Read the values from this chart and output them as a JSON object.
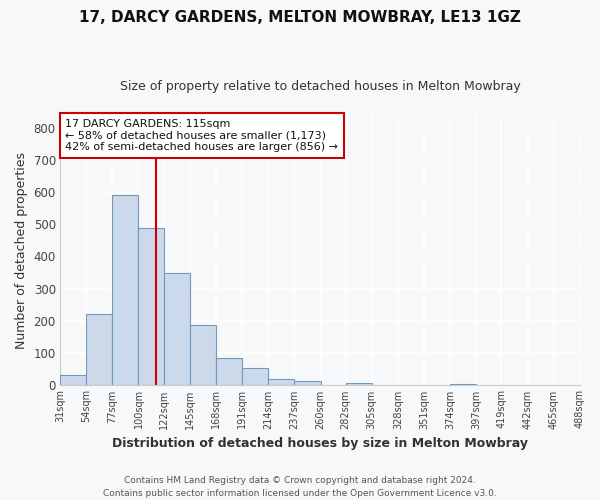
{
  "title": "17, DARCY GARDENS, MELTON MOWBRAY, LE13 1GZ",
  "subtitle": "Size of property relative to detached houses in Melton Mowbray",
  "xlabel": "Distribution of detached houses by size in Melton Mowbray",
  "ylabel": "Number of detached properties",
  "bar_edges": [
    31,
    54,
    77,
    100,
    122,
    145,
    168,
    191,
    214,
    237,
    260,
    282,
    305,
    328,
    351,
    374,
    397,
    419,
    442,
    465,
    488
  ],
  "bar_heights": [
    32,
    220,
    590,
    490,
    350,
    188,
    83,
    52,
    18,
    14,
    0,
    8,
    0,
    0,
    0,
    5,
    0,
    0,
    0,
    0
  ],
  "bar_color": "#ccd9ea",
  "bar_edge_color": "#7198bf",
  "property_line_x": 115,
  "property_line_color": "#cc0000",
  "annotation_title": "17 DARCY GARDENS: 115sqm",
  "annotation_line1": "← 58% of detached houses are smaller (1,173)",
  "annotation_line2": "42% of semi-detached houses are larger (856) →",
  "annotation_box_facecolor": "white",
  "annotation_box_edgecolor": "#cc0000",
  "ylim": [
    0,
    840
  ],
  "yticks": [
    0,
    100,
    200,
    300,
    400,
    500,
    600,
    700,
    800
  ],
  "xtick_labels": [
    "31sqm",
    "54sqm",
    "77sqm",
    "100sqm",
    "122sqm",
    "145sqm",
    "168sqm",
    "191sqm",
    "214sqm",
    "237sqm",
    "260sqm",
    "282sqm",
    "305sqm",
    "328sqm",
    "351sqm",
    "374sqm",
    "397sqm",
    "419sqm",
    "442sqm",
    "465sqm",
    "488sqm"
  ],
  "footer1": "Contains HM Land Registry data © Crown copyright and database right 2024.",
  "footer2": "Contains public sector information licensed under the Open Government Licence v3.0.",
  "bg_color": "#f7f8fa",
  "grid_color": "#dde4ee"
}
